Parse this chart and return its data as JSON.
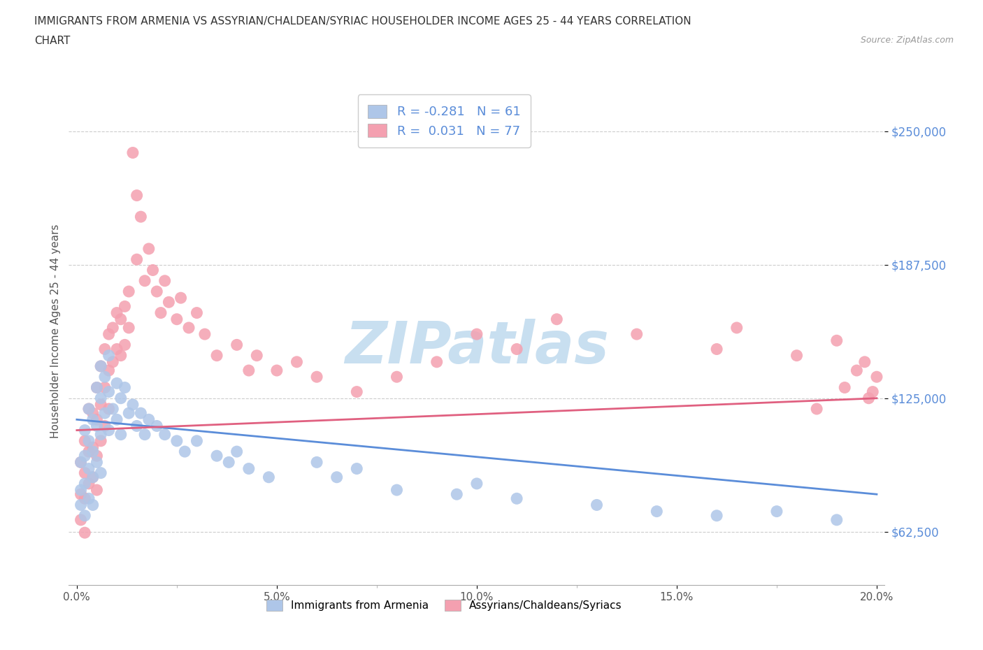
{
  "title_line1": "IMMIGRANTS FROM ARMENIA VS ASSYRIAN/CHALDEAN/SYRIAC HOUSEHOLDER INCOME AGES 25 - 44 YEARS CORRELATION",
  "title_line2": "CHART",
  "source_text": "Source: ZipAtlas.com",
  "ylabel": "Householder Income Ages 25 - 44 years",
  "xlim": [
    -0.002,
    0.202
  ],
  "ylim": [
    37500,
    275000
  ],
  "ytick_vals": [
    62500,
    125000,
    187500,
    250000
  ],
  "ytick_labels": [
    "$62,500",
    "$125,000",
    "$187,500",
    "$250,000"
  ],
  "hgrid_color": "#cccccc",
  "background_color": "#ffffff",
  "watermark_text": "ZIPatlas",
  "watermark_color": "#c8dff0",
  "watermark_fontsize": 60,
  "armenia_color": "#aec6e8",
  "assyrian_color": "#f4a0b0",
  "armenia_line_color": "#5b8dd9",
  "assyrian_line_color": "#e06080",
  "ytick_color": "#5b8dd9",
  "r_armenia": -0.281,
  "n_armenia": 61,
  "r_assyrian": 0.031,
  "n_assyrian": 77,
  "legend_label_armenia": "Immigrants from Armenia",
  "legend_label_assyrian": "Assyrians/Chaldeans/Syriacs",
  "armenia_x": [
    0.001,
    0.001,
    0.001,
    0.002,
    0.002,
    0.002,
    0.002,
    0.003,
    0.003,
    0.003,
    0.003,
    0.004,
    0.004,
    0.004,
    0.004,
    0.005,
    0.005,
    0.005,
    0.006,
    0.006,
    0.006,
    0.006,
    0.007,
    0.007,
    0.008,
    0.008,
    0.008,
    0.009,
    0.01,
    0.01,
    0.011,
    0.011,
    0.012,
    0.013,
    0.014,
    0.015,
    0.016,
    0.017,
    0.018,
    0.02,
    0.022,
    0.025,
    0.027,
    0.03,
    0.035,
    0.038,
    0.04,
    0.043,
    0.048,
    0.06,
    0.065,
    0.07,
    0.08,
    0.095,
    0.1,
    0.11,
    0.13,
    0.145,
    0.16,
    0.175,
    0.19
  ],
  "armenia_y": [
    95000,
    82000,
    75000,
    110000,
    98000,
    85000,
    70000,
    120000,
    105000,
    92000,
    78000,
    115000,
    100000,
    88000,
    75000,
    130000,
    112000,
    95000,
    140000,
    125000,
    108000,
    90000,
    135000,
    118000,
    145000,
    128000,
    110000,
    120000,
    132000,
    115000,
    125000,
    108000,
    130000,
    118000,
    122000,
    112000,
    118000,
    108000,
    115000,
    112000,
    108000,
    105000,
    100000,
    105000,
    98000,
    95000,
    100000,
    92000,
    88000,
    95000,
    88000,
    92000,
    82000,
    80000,
    85000,
    78000,
    75000,
    72000,
    70000,
    72000,
    68000
  ],
  "assyrian_x": [
    0.001,
    0.001,
    0.001,
    0.002,
    0.002,
    0.002,
    0.002,
    0.003,
    0.003,
    0.003,
    0.004,
    0.004,
    0.004,
    0.005,
    0.005,
    0.005,
    0.005,
    0.006,
    0.006,
    0.006,
    0.007,
    0.007,
    0.007,
    0.008,
    0.008,
    0.008,
    0.009,
    0.009,
    0.01,
    0.01,
    0.011,
    0.011,
    0.012,
    0.012,
    0.013,
    0.013,
    0.014,
    0.015,
    0.015,
    0.016,
    0.017,
    0.018,
    0.019,
    0.02,
    0.021,
    0.022,
    0.023,
    0.025,
    0.026,
    0.028,
    0.03,
    0.032,
    0.035,
    0.04,
    0.043,
    0.045,
    0.05,
    0.055,
    0.06,
    0.07,
    0.08,
    0.09,
    0.1,
    0.11,
    0.12,
    0.14,
    0.16,
    0.165,
    0.18,
    0.19,
    0.195,
    0.197,
    0.199,
    0.2,
    0.198,
    0.192,
    0.185
  ],
  "assyrian_y": [
    95000,
    80000,
    68000,
    105000,
    90000,
    78000,
    62000,
    120000,
    100000,
    85000,
    118000,
    102000,
    88000,
    130000,
    115000,
    98000,
    82000,
    140000,
    122000,
    105000,
    148000,
    130000,
    112000,
    155000,
    138000,
    120000,
    158000,
    142000,
    165000,
    148000,
    162000,
    145000,
    168000,
    150000,
    175000,
    158000,
    240000,
    220000,
    190000,
    210000,
    180000,
    195000,
    185000,
    175000,
    165000,
    180000,
    170000,
    162000,
    172000,
    158000,
    165000,
    155000,
    145000,
    150000,
    138000,
    145000,
    138000,
    142000,
    135000,
    128000,
    135000,
    142000,
    155000,
    148000,
    162000,
    155000,
    148000,
    158000,
    145000,
    152000,
    138000,
    142000,
    128000,
    135000,
    125000,
    130000,
    120000
  ]
}
